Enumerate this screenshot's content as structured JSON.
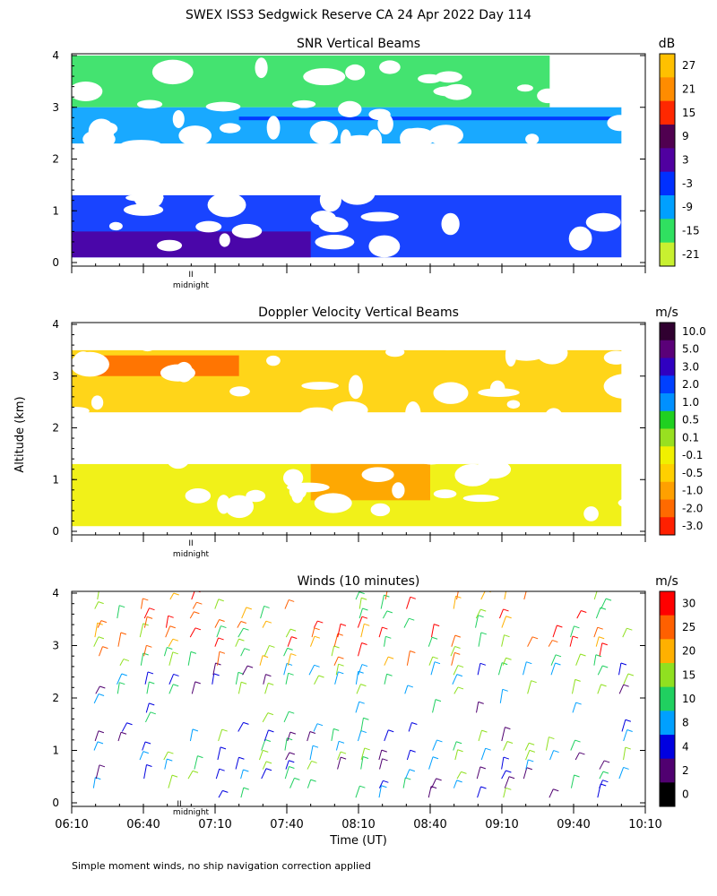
{
  "figure": {
    "title": "SWEX ISS3 Sedgwick Reserve CA  24 Apr 2022 Day 114",
    "ylabel": "Altitude (km)",
    "xlabel": "Time (UT)",
    "footnote": "Simple moment winds, no ship navigation correction applied",
    "midnight_label": "midnight",
    "midnight_marker": "II"
  },
  "chart_data": [
    {
      "type": "heatmap",
      "title": "SNR Vertical Beams",
      "colorbar_unit": "dB",
      "colorbar_ticks": [
        "27",
        "21",
        "15",
        "9",
        "3",
        "-3",
        "-9",
        "-15",
        "-21"
      ],
      "colorbar_colors": [
        "#ffc000",
        "#ff8c00",
        "#ff2800",
        "#500050",
        "#5000a0",
        "#0030ff",
        "#00a0ff",
        "#30e060",
        "#c8f030"
      ],
      "y_ticks": [
        "0",
        "1",
        "2",
        "3",
        "4"
      ],
      "ylim": [
        0,
        4
      ],
      "xlim": [
        "06:10",
        "10:10"
      ],
      "bands": [
        {
          "from": 3.0,
          "to": 4.0,
          "t_from": "06:10",
          "t_to": "09:30",
          "color": "#30e060"
        },
        {
          "from": 2.3,
          "to": 3.0,
          "t_from": "06:10",
          "t_to": "10:00",
          "color": "#00a0ff"
        },
        {
          "from": 2.75,
          "to": 2.82,
          "t_from": "07:20",
          "t_to": "10:00",
          "color": "#0030ff"
        },
        {
          "from": 0.1,
          "to": 1.3,
          "t_from": "06:10",
          "t_to": "10:00",
          "color": "#0030ff"
        },
        {
          "from": 0.1,
          "to": 0.6,
          "t_from": "06:10",
          "t_to": "07:50",
          "color": "#5000a0"
        }
      ]
    },
    {
      "type": "heatmap",
      "title": "Doppler Velocity Vertical Beams",
      "colorbar_unit": "m/s",
      "colorbar_ticks": [
        "10.0",
        "5.0",
        "3.0",
        "2.0",
        "1.0",
        "0.5",
        "0.1",
        "-0.1",
        "-0.5",
        "-1.0",
        "-2.0",
        "-3.0"
      ],
      "colorbar_colors": [
        "#300030",
        "#5a0078",
        "#3000c0",
        "#0040ff",
        "#0090ff",
        "#20d020",
        "#98e020",
        "#f0f000",
        "#ffd000",
        "#ffa000",
        "#ff6a00",
        "#ff2000"
      ],
      "y_ticks": [
        "0",
        "1",
        "2",
        "3",
        "4"
      ],
      "ylim": [
        0,
        4
      ],
      "xlim": [
        "06:10",
        "10:10"
      ],
      "bands": [
        {
          "from": 2.3,
          "to": 3.5,
          "t_from": "06:10",
          "t_to": "10:00",
          "color": "#ffd000"
        },
        {
          "from": 3.0,
          "to": 3.4,
          "t_from": "06:20",
          "t_to": "07:20",
          "color": "#ff6a00"
        },
        {
          "from": 0.1,
          "to": 1.3,
          "t_from": "06:10",
          "t_to": "10:00",
          "color": "#f0f000"
        },
        {
          "from": 0.6,
          "to": 1.3,
          "t_from": "07:50",
          "t_to": "08:40",
          "color": "#ffa000"
        }
      ]
    },
    {
      "type": "scatter",
      "title": "Winds (10 minutes)",
      "colorbar_unit": "m/s",
      "colorbar_ticks": [
        "30",
        "25",
        "20",
        "15",
        "10",
        "8",
        "4",
        "2",
        "0"
      ],
      "colorbar_colors": [
        "#ff0000",
        "#ff6000",
        "#ffb000",
        "#90e020",
        "#20d060",
        "#00a0ff",
        "#0000e0",
        "#500070",
        "#000000"
      ],
      "y_ticks": [
        "0",
        "1",
        "2",
        "3",
        "4"
      ],
      "ylim": [
        0,
        4
      ],
      "x_ticks": [
        "06:10",
        "06:40",
        "07:10",
        "07:40",
        "08:10",
        "08:40",
        "09:10",
        "09:40",
        "10:10"
      ],
      "xlim": [
        "06:10",
        "10:10"
      ]
    }
  ]
}
